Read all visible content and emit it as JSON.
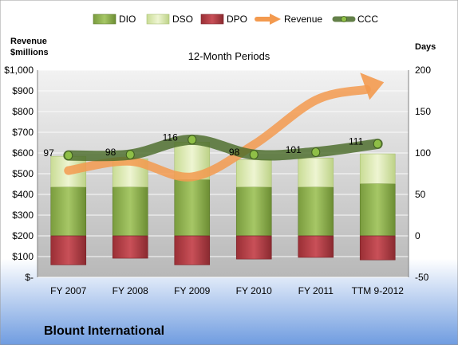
{
  "chart_data": {
    "type": "bar",
    "brand": "Blount International",
    "subtitle": "12-Month Periods",
    "ylabel_left": "Revenue\n$millions",
    "ylabel_right": "Days",
    "categories": [
      "FY 2007",
      "FY 2008",
      "FY 2009",
      "FY 2010",
      "FY 2011",
      "TTM 9-2012"
    ],
    "left_axis": {
      "ylim": [
        0,
        1000
      ],
      "ticks": [
        0,
        100,
        200,
        300,
        400,
        500,
        600,
        700,
        800,
        900,
        1000
      ],
      "tick_labels": [
        "$-",
        "$100",
        "$200",
        "$300",
        "$400",
        "$500",
        "$600",
        "$700",
        "$800",
        "$900",
        "$1,000"
      ]
    },
    "right_axis": {
      "ylim": [
        -50,
        200
      ],
      "ticks": [
        -50,
        0,
        50,
        100,
        150,
        200
      ],
      "tick_labels": [
        "-50",
        "0",
        "50",
        "100",
        "150",
        "200"
      ]
    },
    "series": [
      {
        "name": "DIO",
        "axis": "right",
        "kind": "bar-stack-positive",
        "values": [
          59,
          59,
          68,
          59,
          59,
          63
        ],
        "color": "#8ab04a"
      },
      {
        "name": "DSO",
        "axis": "right",
        "kind": "bar-stack-positive",
        "values": [
          37,
          34,
          45,
          33,
          35,
          36
        ],
        "color": "#d8e8a8"
      },
      {
        "name": "DPO",
        "axis": "right",
        "kind": "bar-negative",
        "values": [
          -35,
          -27,
          -35,
          -28,
          -26,
          -29
        ],
        "color": "#b03c42"
      },
      {
        "name": "Revenue",
        "axis": "left",
        "kind": "arrow-line",
        "values": [
          515,
          560,
          485,
          640,
          855,
          930
        ],
        "color": "#f39a4f"
      },
      {
        "name": "CCC",
        "axis": "right",
        "kind": "line-markers",
        "values": [
          97,
          98,
          116,
          98,
          101,
          111
        ],
        "labels": [
          "97",
          "98",
          "116",
          "98",
          "101",
          "111"
        ],
        "color": "#4a6b2a"
      }
    ],
    "grid": "horizontal",
    "legend": "top"
  }
}
